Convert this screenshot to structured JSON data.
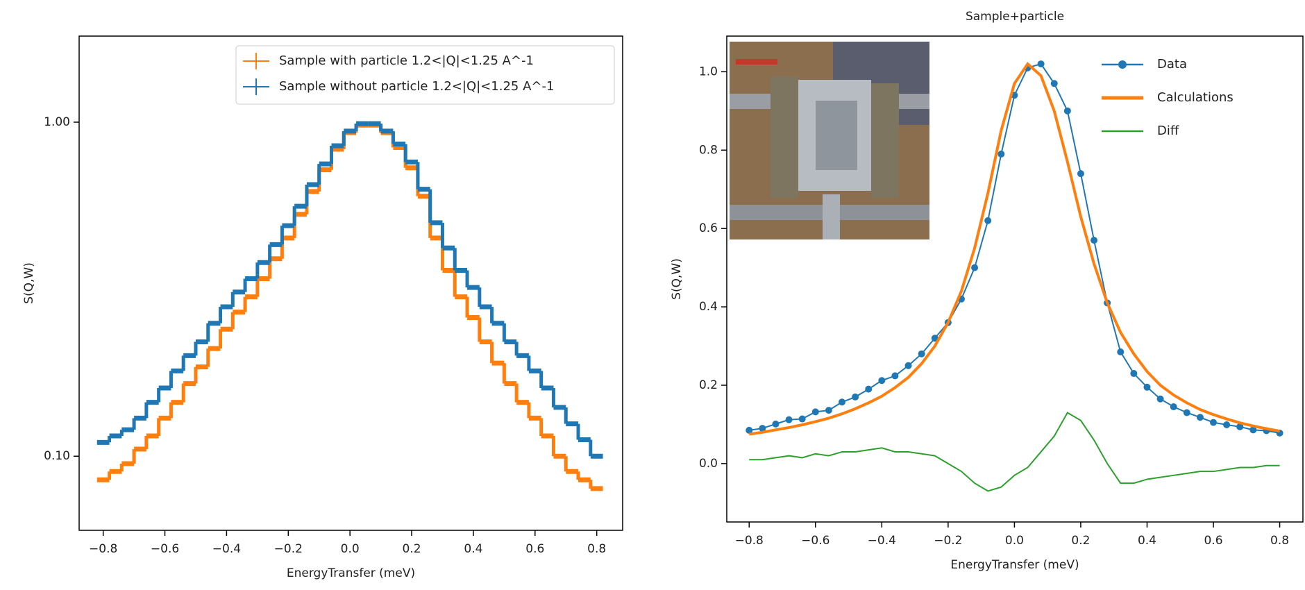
{
  "chart_data": [
    {
      "type": "step",
      "xlabel": "EnergyTransfer (meV)",
      "ylabel": "S(Q,W)",
      "log_y": true,
      "legend": "upper right",
      "x": [
        -0.8,
        -0.76,
        -0.72,
        -0.68,
        -0.64,
        -0.6,
        -0.56,
        -0.52,
        -0.48,
        -0.44,
        -0.4,
        -0.36,
        -0.32,
        -0.28,
        -0.24,
        -0.2,
        -0.16,
        -0.12,
        -0.08,
        -0.04,
        0,
        0.04,
        0.08,
        0.12,
        0.16,
        0.2,
        0.24,
        0.28,
        0.32,
        0.36,
        0.4,
        0.44,
        0.48,
        0.52,
        0.56,
        0.6,
        0.64,
        0.68,
        0.72,
        0.76,
        0.8
      ],
      "series": [
        {
          "name": "Sample with particle 1.2<|Q|<1.25 A^-1",
          "color": "#ff7f0e",
          "values": [
            0.085,
            0.09,
            0.095,
            0.105,
            0.115,
            0.13,
            0.145,
            0.165,
            0.185,
            0.21,
            0.24,
            0.27,
            0.3,
            0.34,
            0.39,
            0.45,
            0.53,
            0.62,
            0.72,
            0.83,
            0.93,
            0.98,
            0.98,
            0.93,
            0.84,
            0.73,
            0.6,
            0.45,
            0.36,
            0.3,
            0.26,
            0.22,
            0.19,
            0.165,
            0.145,
            0.13,
            0.115,
            0.1,
            0.09,
            0.085,
            0.08
          ]
        },
        {
          "name": "Sample without particle 1.2<|Q|<1.25 A^-1",
          "color": "#1f77b4",
          "values": [
            0.11,
            0.115,
            0.12,
            0.13,
            0.145,
            0.16,
            0.18,
            0.2,
            0.22,
            0.25,
            0.28,
            0.31,
            0.34,
            0.38,
            0.43,
            0.49,
            0.56,
            0.65,
            0.75,
            0.85,
            0.94,
            0.99,
            0.99,
            0.94,
            0.86,
            0.76,
            0.63,
            0.5,
            0.42,
            0.36,
            0.32,
            0.28,
            0.25,
            0.22,
            0.2,
            0.18,
            0.16,
            0.14,
            0.125,
            0.112,
            0.1
          ]
        }
      ],
      "xlim": [
        -0.878,
        0.884
      ],
      "ylim": [
        0.06,
        1.81
      ],
      "xticks": [
        {
          "value": -0.8,
          "label": "−0.8"
        },
        {
          "value": -0.6,
          "label": "−0.6"
        },
        {
          "value": -0.4,
          "label": "−0.4"
        },
        {
          "value": -0.2,
          "label": "−0.2"
        },
        {
          "value": 0,
          "label": "0.0"
        },
        0.2,
        0.4,
        0.6,
        0.8
      ],
      "yticks": [
        {
          "value": 0.1,
          "label": "0.10"
        },
        {
          "value": 1,
          "label": "1.00"
        }
      ]
    },
    {
      "type": "line",
      "title": "Sample+particle",
      "xlabel": "EnergyTransfer (meV)",
      "ylabel": "S(Q,W)",
      "log_y": false,
      "legend": "upper right",
      "x": [
        -0.8,
        -0.76,
        -0.72,
        -0.68,
        -0.64,
        -0.6,
        -0.56,
        -0.52,
        -0.48,
        -0.44,
        -0.4,
        -0.36,
        -0.32,
        -0.28,
        -0.24,
        -0.2,
        -0.16,
        -0.12,
        -0.08,
        -0.04,
        0,
        0.04,
        0.08,
        0.12,
        0.16,
        0.2,
        0.24,
        0.28,
        0.32,
        0.36,
        0.4,
        0.44,
        0.48,
        0.52,
        0.56,
        0.6,
        0.64,
        0.68,
        0.72,
        0.76,
        0.8
      ],
      "series": [
        {
          "name": "Data",
          "color": "#1f77b4",
          "marker": "o",
          "values": [
            0.085,
            0.09,
            0.101,
            0.112,
            0.114,
            0.132,
            0.136,
            0.157,
            0.17,
            0.19,
            0.212,
            0.224,
            0.25,
            0.28,
            0.32,
            0.36,
            0.42,
            0.5,
            0.62,
            0.79,
            0.94,
            1.01,
            1.02,
            0.97,
            0.9,
            0.74,
            0.57,
            0.41,
            0.285,
            0.23,
            0.195,
            0.165,
            0.145,
            0.13,
            0.118,
            0.105,
            0.099,
            0.094,
            0.086,
            0.084,
            0.078
          ]
        },
        {
          "name": "Calculations",
          "color": "#ff7f0e",
          "values": [
            0.075,
            0.08,
            0.086,
            0.092,
            0.099,
            0.107,
            0.116,
            0.127,
            0.14,
            0.155,
            0.172,
            0.194,
            0.22,
            0.255,
            0.3,
            0.36,
            0.44,
            0.55,
            0.69,
            0.85,
            0.97,
            1.02,
            0.99,
            0.9,
            0.77,
            0.63,
            0.51,
            0.41,
            0.335,
            0.28,
            0.235,
            0.2,
            0.175,
            0.155,
            0.138,
            0.125,
            0.114,
            0.104,
            0.096,
            0.089,
            0.083
          ]
        },
        {
          "name": "Diff",
          "color": "#2ca02c",
          "values": [
            0.01,
            0.01,
            0.015,
            0.02,
            0.015,
            0.025,
            0.02,
            0.03,
            0.03,
            0.035,
            0.04,
            0.03,
            0.03,
            0.025,
            0.02,
            0.0,
            -0.02,
            -0.05,
            -0.07,
            -0.06,
            -0.03,
            -0.01,
            0.03,
            0.07,
            0.13,
            0.11,
            0.06,
            0.0,
            -0.05,
            -0.05,
            -0.04,
            -0.035,
            -0.03,
            -0.025,
            -0.02,
            -0.02,
            -0.015,
            -0.01,
            -0.01,
            -0.005,
            -0.005
          ]
        }
      ],
      "xlim": [
        -0.8675,
        0.87
      ],
      "ylim": [
        -0.149,
        1.091
      ],
      "xticks": [
        {
          "value": -0.8,
          "label": "−0.8"
        },
        {
          "value": -0.6,
          "label": "−0.6"
        },
        {
          "value": -0.4,
          "label": "−0.4"
        },
        {
          "value": -0.2,
          "label": "−0.2"
        },
        {
          "value": 0,
          "label": "0.0"
        },
        0.2,
        0.4,
        0.6,
        0.8
      ],
      "yticks": [
        {
          "value": 0,
          "label": "0.0"
        },
        0.2,
        0.4,
        0.6,
        0.8,
        {
          "value": 1,
          "label": "1.0"
        }
      ]
    }
  ]
}
